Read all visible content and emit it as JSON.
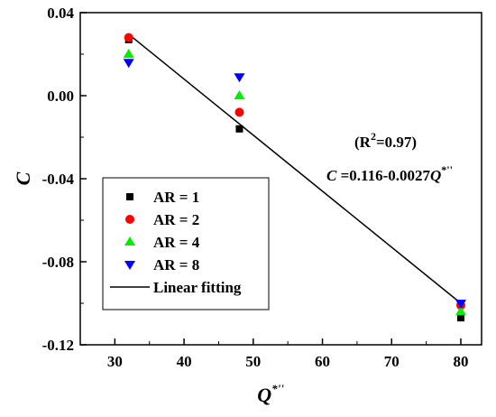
{
  "chart_data": {
    "type": "scatter",
    "xlabel": "Q",
    "xlabel_sup": "*''",
    "ylabel": "C",
    "xlim": [
      25,
      83
    ],
    "ylim": [
      -0.12,
      0.04
    ],
    "x_ticks": [
      30,
      40,
      50,
      60,
      70,
      80
    ],
    "y_ticks": [
      -0.12,
      -0.08,
      -0.04,
      0.0,
      0.04
    ],
    "y_tick_labels": [
      "-0.12",
      "-0.08",
      "-0.04",
      "0.00",
      "0.04"
    ],
    "x_tick_labels": [
      "30",
      "40",
      "50",
      "60",
      "70",
      "80"
    ],
    "series": [
      {
        "name": "AR = 1",
        "marker": "square",
        "color": "#000000",
        "x": [
          32,
          48,
          80
        ],
        "y": [
          0.027,
          -0.016,
          -0.107
        ]
      },
      {
        "name": "AR = 2",
        "marker": "circle",
        "color": "#ff0000",
        "x": [
          32,
          48,
          80
        ],
        "y": [
          0.028,
          -0.008,
          -0.101
        ]
      },
      {
        "name": "AR = 4",
        "marker": "triangle-up",
        "color": "#00ee00",
        "x": [
          32,
          48,
          80
        ],
        "y": [
          0.02,
          0.0,
          -0.104
        ]
      },
      {
        "name": "AR = 8",
        "marker": "triangle-down",
        "color": "#0000ff",
        "x": [
          32,
          48,
          80
        ],
        "y": [
          0.016,
          0.009,
          -0.1
        ]
      }
    ],
    "fit": {
      "name": "Linear fitting",
      "color": "#000000",
      "x": [
        32,
        80
      ],
      "y": [
        0.0296,
        -0.1
      ]
    },
    "annotations": {
      "r2_prefix": "(R",
      "r2_sup": "2",
      "r2_suffix": "=0.97)",
      "eq_var": "C",
      "eq_body": " =0.116-0.0027",
      "eq_q": "Q",
      "eq_sup": "*''"
    },
    "legend": "lower-left"
  }
}
